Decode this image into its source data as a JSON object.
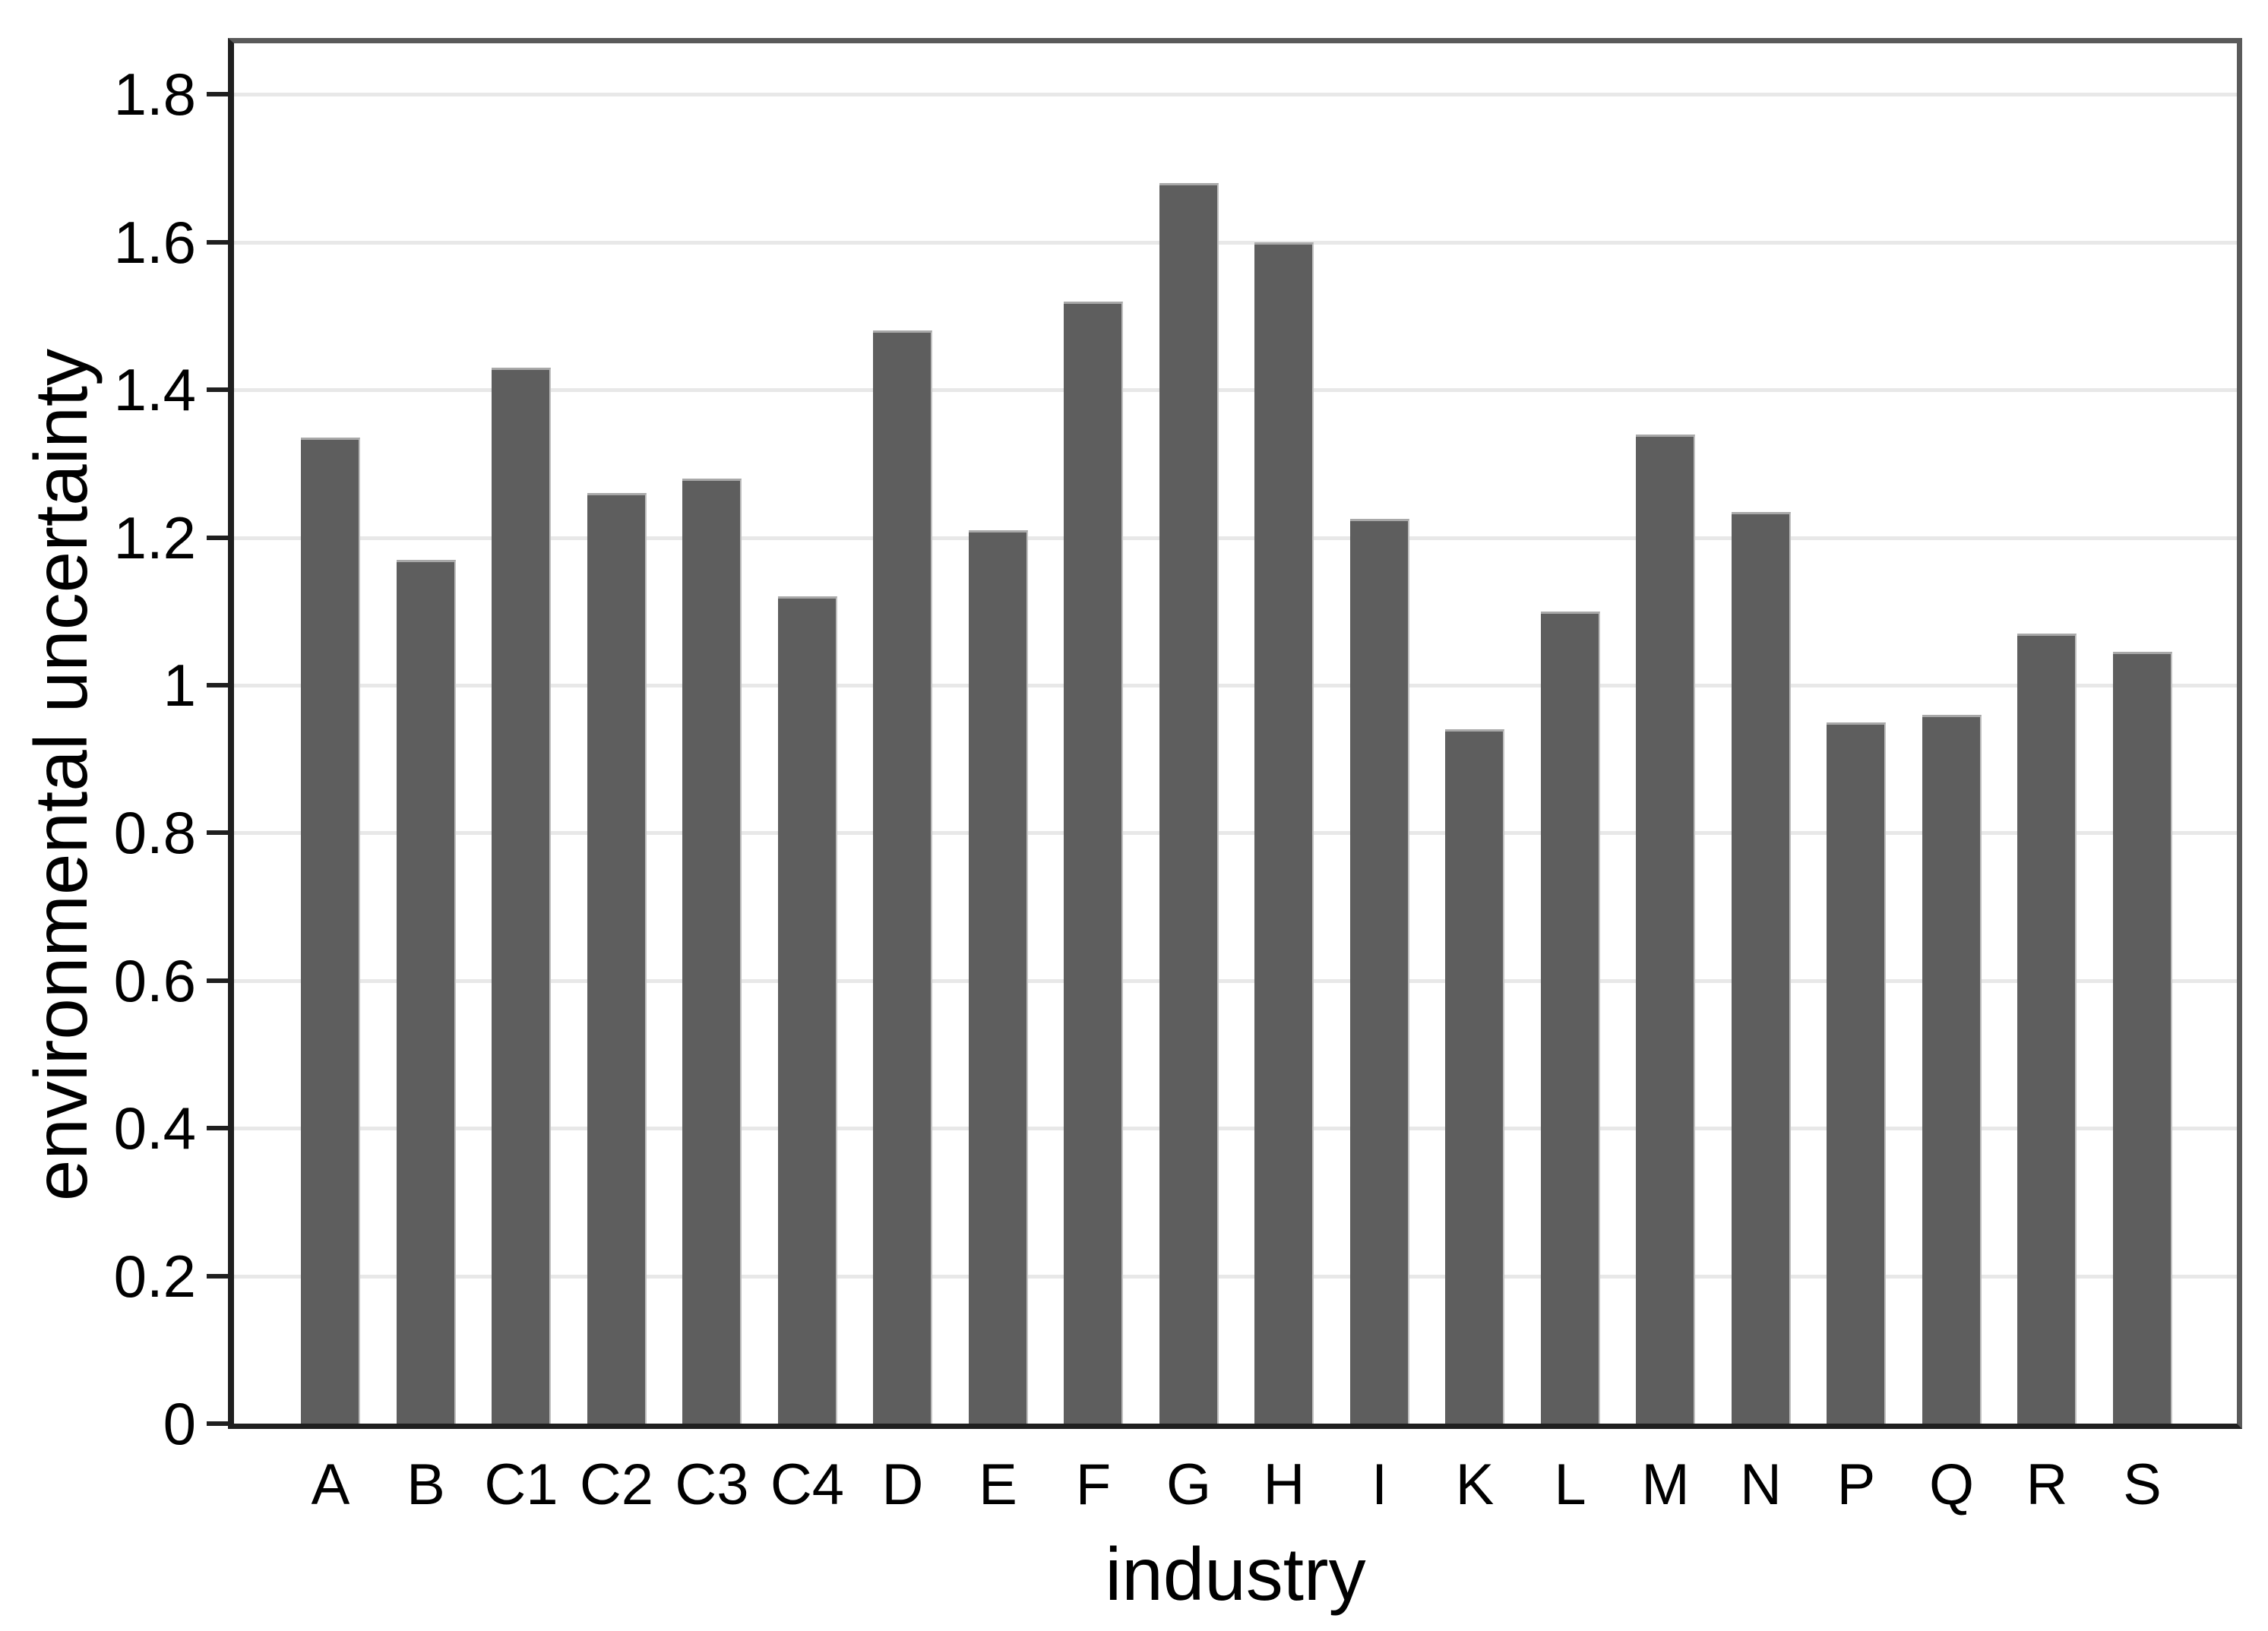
{
  "figure": {
    "background": "#ffffff"
  },
  "chart_data": {
    "type": "bar",
    "title": "",
    "xlabel": "industry",
    "ylabel": "environmental uncertainty",
    "categories": [
      "A",
      "B",
      "C1",
      "C2",
      "C3",
      "C4",
      "D",
      "E",
      "F",
      "G",
      "H",
      "I",
      "K",
      "L",
      "M",
      "N",
      "P",
      "Q",
      "R",
      "S"
    ],
    "values": [
      1.335,
      1.17,
      1.43,
      1.26,
      1.28,
      1.12,
      1.48,
      1.21,
      1.52,
      1.68,
      1.6,
      1.225,
      0.94,
      1.1,
      1.34,
      1.235,
      0.95,
      0.96,
      1.07,
      1.045
    ],
    "ylim": [
      0,
      1.87
    ],
    "yticks": {
      "values": [
        0,
        0.2,
        0.4,
        0.6,
        0.8,
        1,
        1.2,
        1.4,
        1.6,
        1.8
      ],
      "labels": [
        "0",
        "0.2",
        "0.4",
        "0.6",
        "0.8",
        "1",
        "1.2",
        "1.4",
        "1.6",
        "1.8"
      ]
    },
    "grid": "horizontal",
    "legend": "none",
    "bar_color": "#5e5e5e",
    "gridline_color": "#e8e8e8",
    "axis_color": "#1f1f1f",
    "frame_color": "#5a5a5a"
  }
}
